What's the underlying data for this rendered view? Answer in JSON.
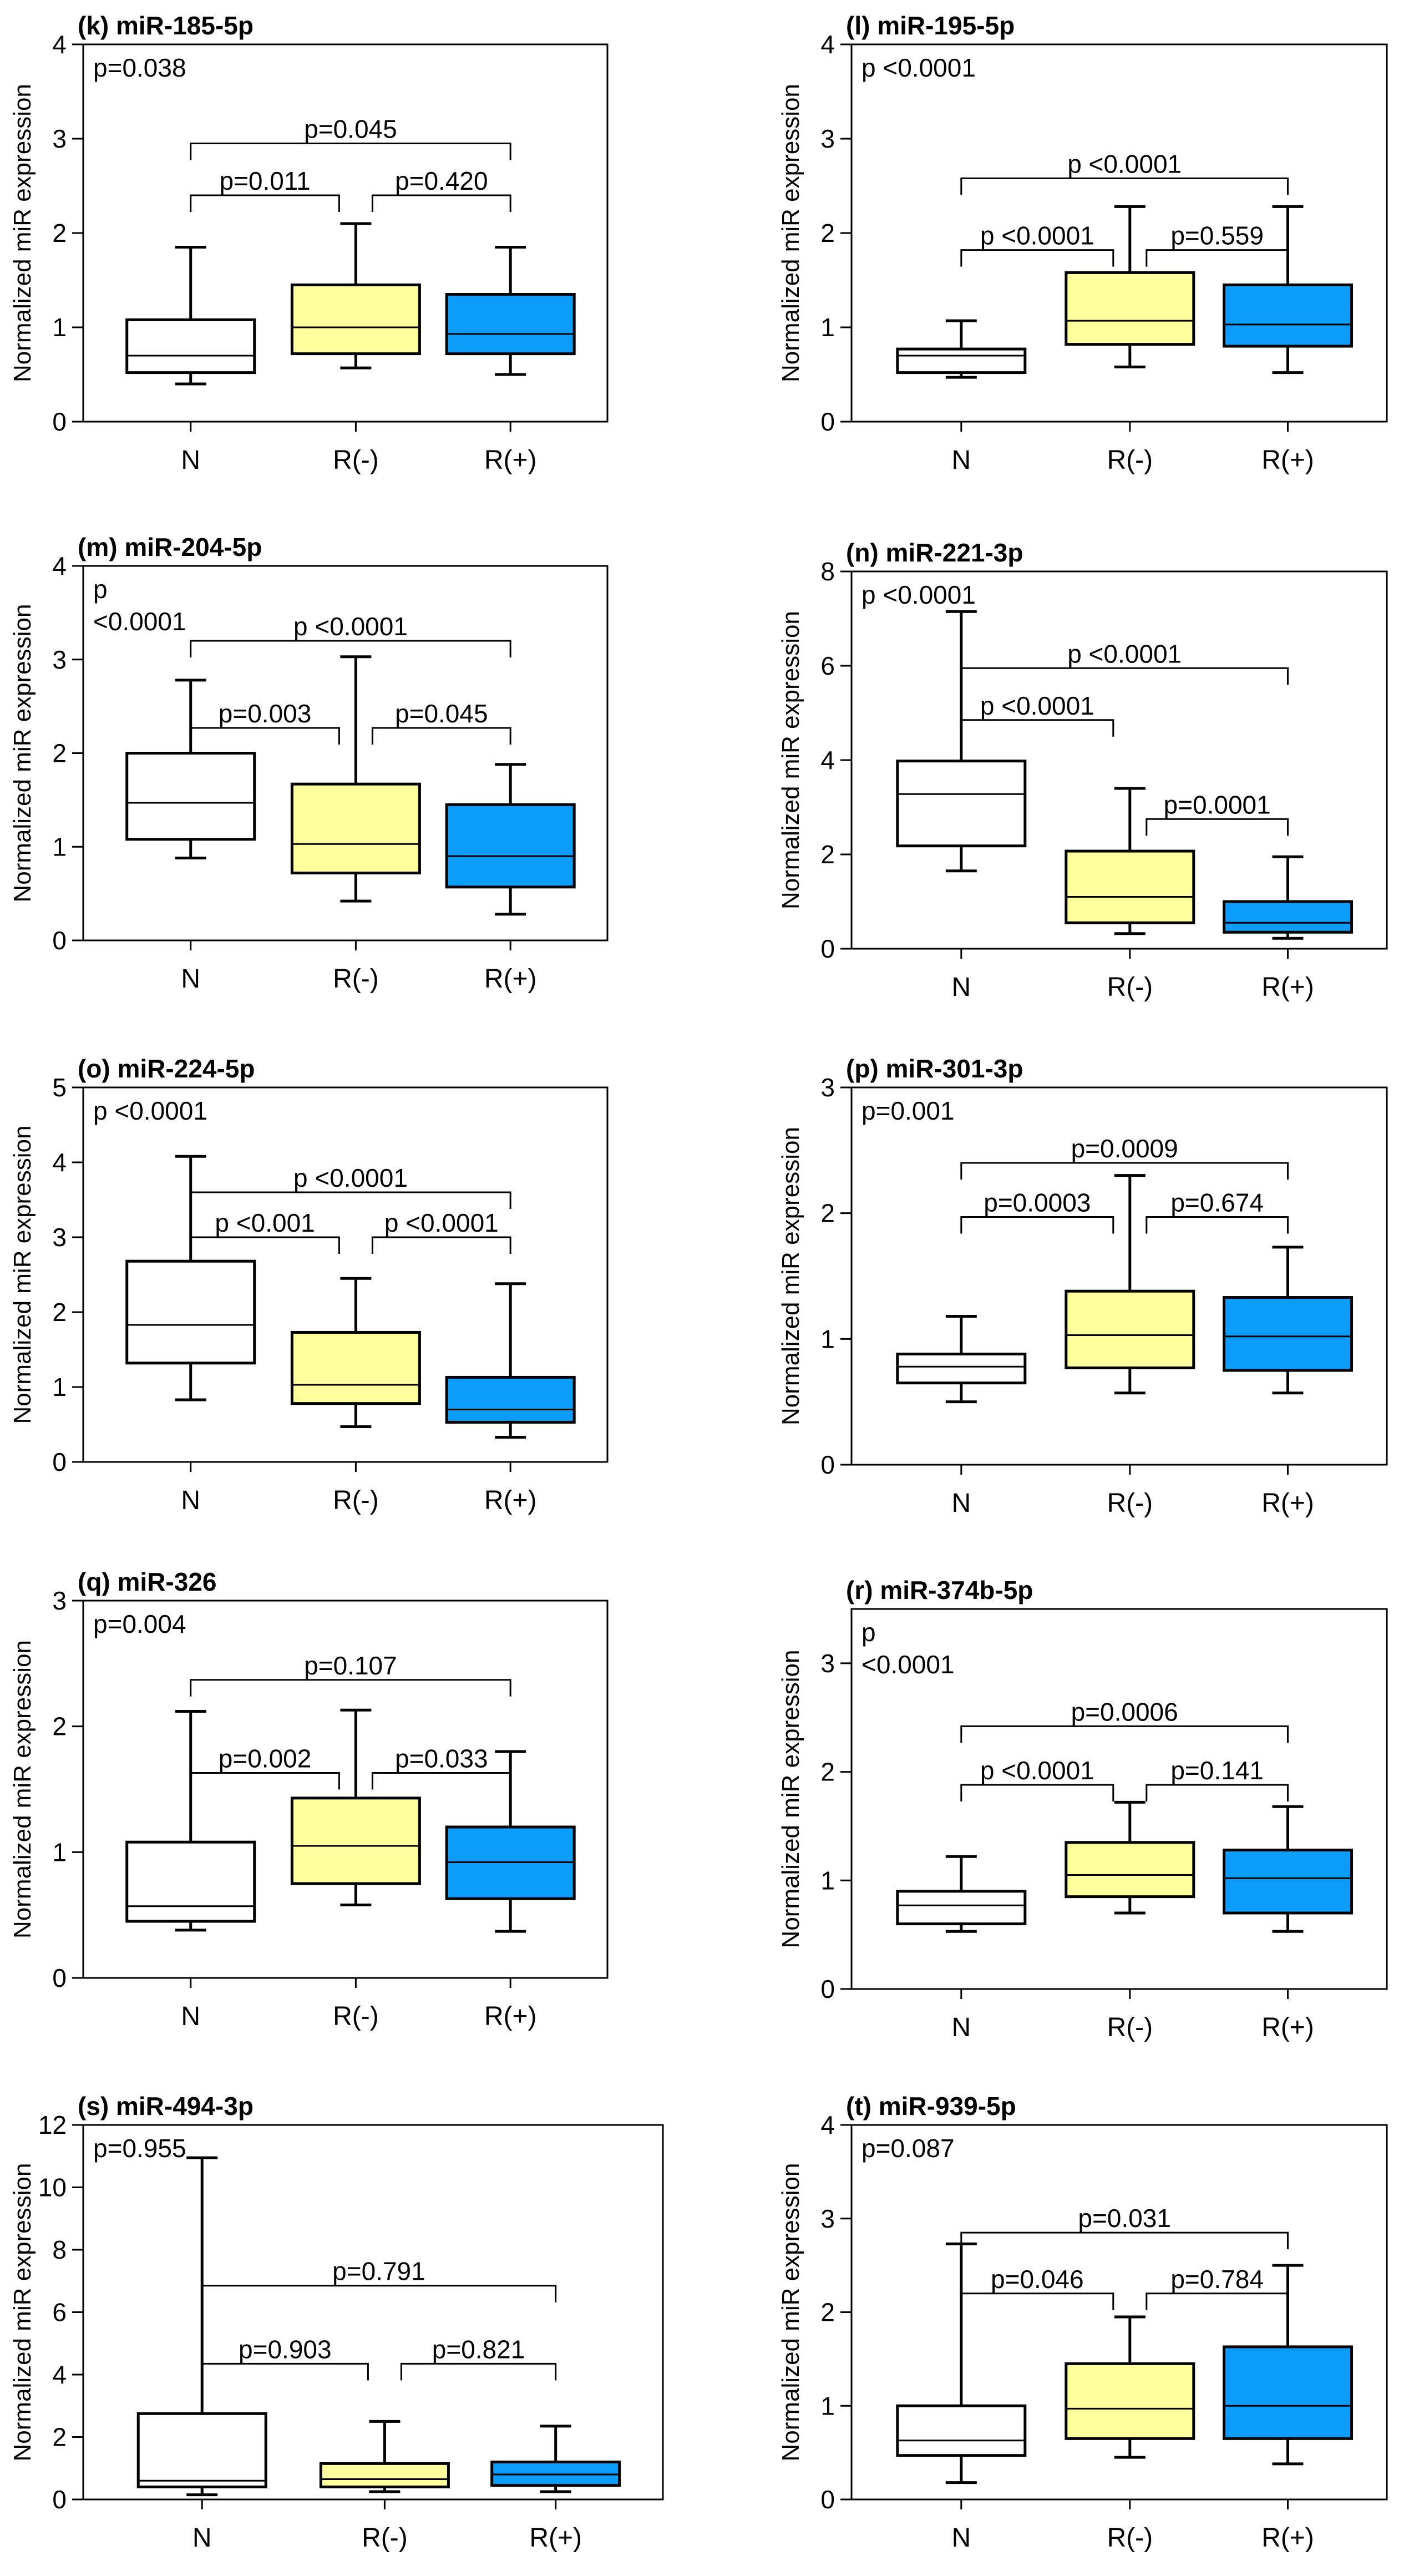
{
  "colors": {
    "N": "#ffffff",
    "R(-)": "#ffff9e",
    "R(+)": "#0c9dfa",
    "stroke": "#000000"
  },
  "chart_data": [
    {
      "type": "box",
      "title": "(k) miR-185-5p",
      "ylabel": "Normalized miR expression",
      "ylim": [
        0,
        4
      ],
      "ticks": [
        0,
        1,
        2,
        3,
        4
      ],
      "categories": [
        "N",
        "R(-)",
        "R(+)"
      ],
      "overall_p": [
        "p=0.038"
      ],
      "boxes": [
        {
          "min": 0.4,
          "q1": 0.52,
          "median": 0.7,
          "q3": 1.08,
          "max": 1.85
        },
        {
          "min": 0.57,
          "q1": 0.72,
          "median": 1.0,
          "q3": 1.45,
          "max": 2.1
        },
        {
          "min": 0.5,
          "q1": 0.72,
          "median": 0.93,
          "q3": 1.35,
          "max": 1.85
        }
      ],
      "comparisons": [
        {
          "pair": [
            0,
            1
          ],
          "label": "p=0.011",
          "y": 2.4
        },
        {
          "pair": [
            1,
            2
          ],
          "label": "p=0.420",
          "y": 2.4
        },
        {
          "pair": [
            0,
            2
          ],
          "label": "p=0.045",
          "y": 2.95
        }
      ]
    },
    {
      "type": "box",
      "title": "(l) miR-195-5p",
      "ylabel": "Normalized miR expression",
      "ylim": [
        0,
        4
      ],
      "ticks": [
        0,
        1,
        2,
        3,
        4
      ],
      "categories": [
        "N",
        "R(-)",
        "R(+)"
      ],
      "overall_p": [
        "p <0.0001"
      ],
      "boxes": [
        {
          "min": 0.47,
          "q1": 0.52,
          "median": 0.7,
          "q3": 0.77,
          "max": 1.07
        },
        {
          "min": 0.58,
          "q1": 0.82,
          "median": 1.07,
          "q3": 1.58,
          "max": 2.28
        },
        {
          "min": 0.52,
          "q1": 0.8,
          "median": 1.03,
          "q3": 1.45,
          "max": 2.28
        }
      ],
      "comparisons": [
        {
          "pair": [
            0,
            1
          ],
          "label": "p <0.0001",
          "y": 1.82
        },
        {
          "pair": [
            1,
            2
          ],
          "label": "p=0.559",
          "y": 1.82
        },
        {
          "pair": [
            0,
            2
          ],
          "label": "p <0.0001",
          "y": 2.58
        }
      ]
    },
    {
      "type": "box",
      "title": "(m) miR-204-5p",
      "ylabel": "Normalized miR expression",
      "ylim": [
        0,
        4
      ],
      "ticks": [
        0,
        1,
        2,
        3,
        4
      ],
      "categories": [
        "N",
        "R(-)",
        "R(+)"
      ],
      "overall_p": [
        "p",
        "<0.0001"
      ],
      "boxes": [
        {
          "min": 0.88,
          "q1": 1.08,
          "median": 1.47,
          "q3": 2.0,
          "max": 2.78
        },
        {
          "min": 0.42,
          "q1": 0.72,
          "median": 1.03,
          "q3": 1.67,
          "max": 3.03
        },
        {
          "min": 0.28,
          "q1": 0.57,
          "median": 0.9,
          "q3": 1.45,
          "max": 1.88
        }
      ],
      "comparisons": [
        {
          "pair": [
            0,
            1
          ],
          "label": "p=0.003",
          "y": 2.27
        },
        {
          "pair": [
            1,
            2
          ],
          "label": "p=0.045",
          "y": 2.27
        },
        {
          "pair": [
            0,
            2
          ],
          "label": "p <0.0001",
          "y": 3.2
        }
      ]
    },
    {
      "type": "box",
      "title": "(n) miR-221-3p",
      "ylabel": "Normalized miR expression",
      "ylim": [
        0,
        8
      ],
      "ticks": [
        0,
        2,
        4,
        6,
        8
      ],
      "categories": [
        "N",
        "R(-)",
        "R(+)"
      ],
      "overall_p": [
        "p <0.0001"
      ],
      "boxes": [
        {
          "min": 1.65,
          "q1": 2.18,
          "median": 3.28,
          "q3": 3.98,
          "max": 7.15
        },
        {
          "min": 0.32,
          "q1": 0.55,
          "median": 1.1,
          "q3": 2.07,
          "max": 3.4
        },
        {
          "min": 0.22,
          "q1": 0.35,
          "median": 0.55,
          "q3": 1.0,
          "max": 1.95
        }
      ],
      "comparisons": [
        {
          "pair": [
            0,
            1
          ],
          "label": "p <0.0001",
          "y": 4.85
        },
        {
          "pair": [
            1,
            2
          ],
          "label": "p=0.0001",
          "y": 2.75
        },
        {
          "pair": [
            0,
            2
          ],
          "label": "p <0.0001",
          "y": 5.95
        }
      ]
    },
    {
      "type": "box",
      "title": "(o) miR-224-5p",
      "ylabel": "Normalized miR expression",
      "ylim": [
        0,
        5
      ],
      "ticks": [
        0,
        1,
        2,
        3,
        4,
        5
      ],
      "categories": [
        "N",
        "R(-)",
        "R(+)"
      ],
      "overall_p": [
        "p <0.0001"
      ],
      "boxes": [
        {
          "min": 0.83,
          "q1": 1.32,
          "median": 1.83,
          "q3": 2.68,
          "max": 4.08
        },
        {
          "min": 0.47,
          "q1": 0.78,
          "median": 1.03,
          "q3": 1.73,
          "max": 2.45
        },
        {
          "min": 0.33,
          "q1": 0.53,
          "median": 0.7,
          "q3": 1.13,
          "max": 2.38
        }
      ],
      "comparisons": [
        {
          "pair": [
            0,
            1
          ],
          "label": "p <0.001",
          "y": 3.0
        },
        {
          "pair": [
            1,
            2
          ],
          "label": "p <0.0001",
          "y": 3.0
        },
        {
          "pair": [
            0,
            2
          ],
          "label": "p <0.0001",
          "y": 3.6
        }
      ]
    },
    {
      "type": "box",
      "title": "(p) miR-301-3p",
      "ylabel": "Normalized miR expression",
      "ylim": [
        0,
        3
      ],
      "ticks": [
        0,
        1,
        2,
        3
      ],
      "categories": [
        "N",
        "R(-)",
        "R(+)"
      ],
      "overall_p": [
        "p=0.001"
      ],
      "boxes": [
        {
          "min": 0.5,
          "q1": 0.65,
          "median": 0.78,
          "q3": 0.88,
          "max": 1.18
        },
        {
          "min": 0.57,
          "q1": 0.77,
          "median": 1.03,
          "q3": 1.38,
          "max": 2.3
        },
        {
          "min": 0.57,
          "q1": 0.75,
          "median": 1.02,
          "q3": 1.33,
          "max": 1.73
        }
      ],
      "comparisons": [
        {
          "pair": [
            0,
            1
          ],
          "label": "p=0.0003",
          "y": 1.97
        },
        {
          "pair": [
            1,
            2
          ],
          "label": "p=0.674",
          "y": 1.97
        },
        {
          "pair": [
            0,
            2
          ],
          "label": "p=0.0009",
          "y": 2.4
        }
      ]
    },
    {
      "type": "box",
      "title": "(q) miR-326",
      "ylabel": "Normalized miR expression",
      "ylim": [
        0,
        3
      ],
      "ticks": [
        0,
        1,
        2,
        3
      ],
      "categories": [
        "N",
        "R(-)",
        "R(+)"
      ],
      "overall_p": [
        "p=0.004"
      ],
      "boxes": [
        {
          "min": 0.38,
          "q1": 0.45,
          "median": 0.57,
          "q3": 1.08,
          "max": 2.12
        },
        {
          "min": 0.58,
          "q1": 0.75,
          "median": 1.05,
          "q3": 1.43,
          "max": 2.13
        },
        {
          "min": 0.37,
          "q1": 0.63,
          "median": 0.92,
          "q3": 1.2,
          "max": 1.8
        }
      ],
      "comparisons": [
        {
          "pair": [
            0,
            1
          ],
          "label": "p=0.002",
          "y": 1.63
        },
        {
          "pair": [
            1,
            2
          ],
          "label": "p=0.033",
          "y": 1.63
        },
        {
          "pair": [
            0,
            2
          ],
          "label": "p=0.107",
          "y": 2.37
        }
      ]
    },
    {
      "type": "box",
      "title": "(r) miR-374b-5p",
      "ylabel": "Normalized miR expression",
      "ylim": [
        0,
        3.5
      ],
      "ticks": [
        0,
        1,
        2,
        3
      ],
      "categories": [
        "N",
        "R(-)",
        "R(+)"
      ],
      "overall_p": [
        "p",
        "<0.0001"
      ],
      "boxes": [
        {
          "min": 0.53,
          "q1": 0.6,
          "median": 0.77,
          "q3": 0.9,
          "max": 1.22
        },
        {
          "min": 0.7,
          "q1": 0.85,
          "median": 1.05,
          "q3": 1.35,
          "max": 1.72
        },
        {
          "min": 0.53,
          "q1": 0.7,
          "median": 1.02,
          "q3": 1.28,
          "max": 1.68
        }
      ],
      "comparisons": [
        {
          "pair": [
            0,
            1
          ],
          "label": "p <0.0001",
          "y": 1.88
        },
        {
          "pair": [
            1,
            2
          ],
          "label": "p=0.141",
          "y": 1.88
        },
        {
          "pair": [
            0,
            2
          ],
          "label": "p=0.0006",
          "y": 2.42
        }
      ]
    },
    {
      "type": "box",
      "title": "(s) miR-494-3p",
      "ylabel": "Normalized miR expression",
      "ylim": [
        0,
        12
      ],
      "ticks": [
        0,
        2,
        4,
        6,
        8,
        10,
        12
      ],
      "categories": [
        "N",
        "R(-)",
        "R(+)"
      ],
      "overall_p": [
        "p=0.955"
      ],
      "boxes": [
        {
          "min": 0.15,
          "q1": 0.4,
          "median": 0.6,
          "q3": 2.75,
          "max": 10.95
        },
        {
          "min": 0.25,
          "q1": 0.4,
          "median": 0.65,
          "q3": 1.15,
          "max": 2.5
        },
        {
          "min": 0.25,
          "q1": 0.45,
          "median": 0.8,
          "q3": 1.2,
          "max": 2.35
        }
      ],
      "comparisons": [
        {
          "pair": [
            0,
            1
          ],
          "label": "p=0.903",
          "y": 4.35
        },
        {
          "pair": [
            1,
            2
          ],
          "label": "p=0.821",
          "y": 4.35
        },
        {
          "pair": [
            0,
            2
          ],
          "label": "p=0.791",
          "y": 6.85
        }
      ]
    },
    {
      "type": "box",
      "title": "(t) miR-939-5p",
      "ylabel": "Normalized miR expression",
      "ylim": [
        0,
        4
      ],
      "ticks": [
        0,
        1,
        2,
        3,
        4
      ],
      "categories": [
        "N",
        "R(-)",
        "R(+)"
      ],
      "overall_p": [
        "p=0.087"
      ],
      "boxes": [
        {
          "min": 0.18,
          "q1": 0.47,
          "median": 0.63,
          "q3": 1.0,
          "max": 2.73
        },
        {
          "min": 0.45,
          "q1": 0.65,
          "median": 0.97,
          "q3": 1.45,
          "max": 1.95
        },
        {
          "min": 0.38,
          "q1": 0.65,
          "median": 1.0,
          "q3": 1.63,
          "max": 2.5
        }
      ],
      "comparisons": [
        {
          "pair": [
            0,
            1
          ],
          "label": "p=0.046",
          "y": 2.2
        },
        {
          "pair": [
            1,
            2
          ],
          "label": "p=0.784",
          "y": 2.2
        },
        {
          "pair": [
            0,
            2
          ],
          "label": "p=0.031",
          "y": 2.85
        }
      ]
    }
  ]
}
